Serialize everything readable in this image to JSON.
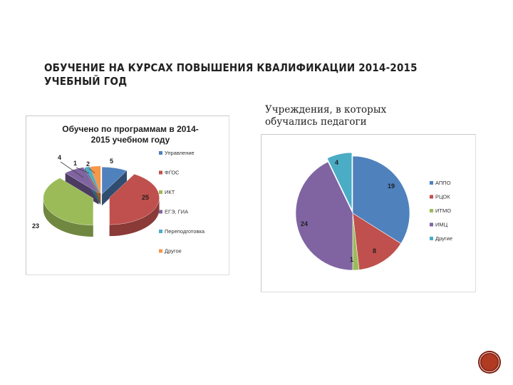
{
  "slide": {
    "title_line1": "ОБУЧЕНИЕ НА КУРСАХ ПОВЫШЕНИЯ КВАЛИФИКАЦИИ 2014-2015",
    "title_line2": "УЧЕБНЫЙ ГОД",
    "subtitle_line1": "Учреждения, в которых",
    "subtitle_line2": "обучались педагоги"
  },
  "chart_data": [
    {
      "type": "pie",
      "style": "3d-exploded",
      "title": "Обучено по программам в 2014-2015 учебном году",
      "title_lines": [
        "Обучено по программам в 2014-",
        "2015 учебном году"
      ],
      "legend_position": "right",
      "categories": [
        "Управление",
        "ФГОС",
        "ИКТ",
        "ЕГЭ, ГИА",
        "Переподготовка",
        "Другое"
      ],
      "values": [
        5,
        25,
        23,
        4,
        1,
        2
      ],
      "colors": [
        "#4f81bd",
        "#c0504d",
        "#9bbb59",
        "#8064a2",
        "#4bacc6",
        "#f79646"
      ]
    },
    {
      "type": "pie",
      "title": "",
      "legend_position": "right",
      "categories": [
        "АППО",
        "РЦОК",
        "ИТМО",
        "ИМЦ",
        "Другие"
      ],
      "values": [
        19,
        8,
        1,
        24,
        4
      ],
      "colors": [
        "#4f81bd",
        "#c0504d",
        "#9bbb59",
        "#8064a2",
        "#4bacc6"
      ]
    }
  ],
  "footer": {
    "emblem_icon": "round-emblem-icon"
  }
}
